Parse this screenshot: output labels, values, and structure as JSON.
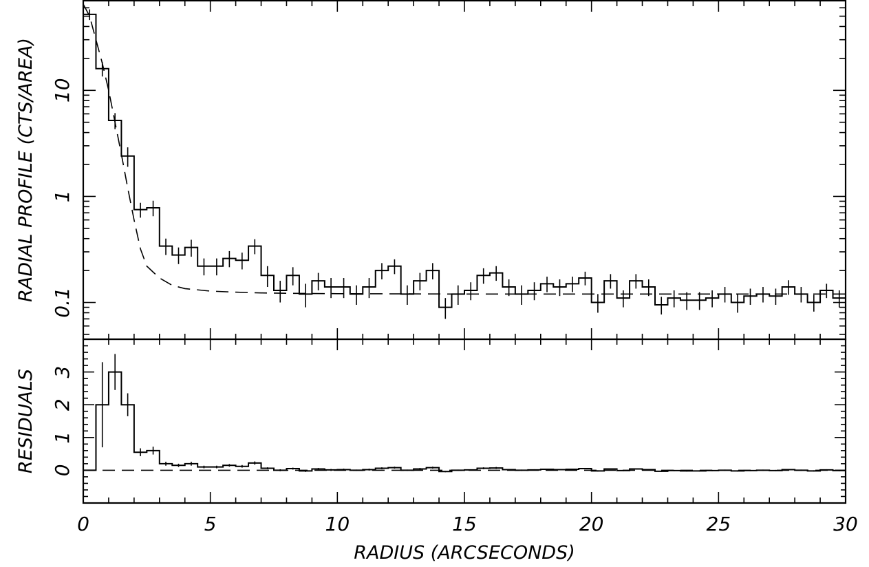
{
  "chart_data": [
    {
      "panel": "profile",
      "type": "line",
      "ylabel": "RADIAL PROFILE (CTS/AREA)",
      "xlabel": "",
      "x_scale": "linear",
      "y_scale": "log",
      "xlim": [
        0,
        30
      ],
      "ylim": [
        0.045,
        70
      ],
      "yticks_major": [
        0.1,
        1,
        10
      ],
      "ytick_labels": [
        "0.1",
        "1",
        "10"
      ],
      "grid": false,
      "series": [
        {
          "style": "step-with-errorbars",
          "x": [
            0.25,
            0.75,
            1.25,
            1.75,
            2.25,
            2.75,
            3.25,
            3.75,
            4.25,
            4.75,
            5.25,
            5.75,
            6.25,
            6.75,
            7.25,
            7.75,
            8.25,
            8.75,
            9.25,
            9.75,
            10.25,
            10.75,
            11.25,
            11.75,
            12.25,
            12.75,
            13.25,
            13.75,
            14.25,
            14.75,
            15.25,
            15.75,
            16.25,
            16.75,
            17.25,
            17.75,
            18.25,
            18.75,
            19.25,
            19.75,
            20.25,
            20.75,
            21.25,
            21.75,
            22.25,
            22.75,
            23.25,
            23.75,
            24.25,
            24.75,
            25.25,
            25.75,
            26.25,
            26.75,
            27.25,
            27.75,
            28.25,
            28.75,
            29.25,
            29.75
          ],
          "y": [
            52,
            16,
            5.2,
            2.4,
            0.75,
            0.78,
            0.34,
            0.28,
            0.33,
            0.22,
            0.22,
            0.26,
            0.25,
            0.34,
            0.18,
            0.13,
            0.18,
            0.12,
            0.16,
            0.14,
            0.14,
            0.12,
            0.14,
            0.2,
            0.22,
            0.12,
            0.16,
            0.2,
            0.09,
            0.12,
            0.13,
            0.18,
            0.19,
            0.14,
            0.12,
            0.13,
            0.15,
            0.14,
            0.15,
            0.17,
            0.1,
            0.16,
            0.11,
            0.16,
            0.14,
            0.095,
            0.11,
            0.105,
            0.105,
            0.11,
            0.12,
            0.1,
            0.115,
            0.12,
            0.115,
            0.14,
            0.12,
            0.1,
            0.13,
            0.11
          ],
          "err": [
            6,
            2.5,
            0.9,
            0.5,
            0.12,
            0.13,
            0.06,
            0.05,
            0.06,
            0.04,
            0.04,
            0.045,
            0.045,
            0.055,
            0.04,
            0.03,
            0.035,
            0.03,
            0.03,
            0.03,
            0.03,
            0.025,
            0.03,
            0.035,
            0.035,
            0.025,
            0.03,
            0.035,
            0.02,
            0.025,
            0.025,
            0.03,
            0.03,
            0.025,
            0.025,
            0.025,
            0.025,
            0.025,
            0.025,
            0.025,
            0.02,
            0.025,
            0.02,
            0.025,
            0.025,
            0.018,
            0.02,
            0.02,
            0.02,
            0.02,
            0.02,
            0.02,
            0.02,
            0.02,
            0.02,
            0.022,
            0.02,
            0.018,
            0.02,
            0.02
          ]
        },
        {
          "style": "dashed-model",
          "x": [
            0,
            0.25,
            0.5,
            0.75,
            1,
            1.25,
            1.5,
            1.75,
            2,
            2.25,
            2.5,
            3,
            3.5,
            4,
            5,
            6,
            7,
            8,
            10,
            15,
            20,
            25,
            30
          ],
          "y": [
            65,
            50,
            30,
            18,
            10,
            5,
            2.5,
            1.2,
            0.6,
            0.32,
            0.22,
            0.17,
            0.145,
            0.135,
            0.128,
            0.125,
            0.123,
            0.122,
            0.121,
            0.12,
            0.12,
            0.12,
            0.12
          ]
        }
      ]
    },
    {
      "panel": "residuals",
      "type": "line",
      "ylabel": "RESIDUALS",
      "xlabel": "RADIUS (ARCSECONDS)",
      "x_scale": "linear",
      "y_scale": "linear",
      "xlim": [
        0,
        30
      ],
      "ylim": [
        -1,
        4
      ],
      "yticks_major": [
        0,
        1,
        2,
        3
      ],
      "ytick_labels": [
        "0",
        "1",
        "2",
        "3"
      ],
      "xticks_major": [
        0,
        5,
        10,
        15,
        20,
        25,
        30
      ],
      "xtick_labels": [
        "0",
        "5",
        "10",
        "15",
        "20",
        "25",
        "30"
      ],
      "grid": false,
      "zero_line": 0,
      "series": [
        {
          "style": "step-with-errorbars",
          "x": [
            0.25,
            0.75,
            1.25,
            1.75,
            2.25,
            2.75,
            3.25,
            3.75,
            4.25,
            4.75,
            5.25,
            5.75,
            6.25,
            6.75,
            7.25,
            7.75,
            8.25,
            8.75,
            9.25,
            9.75,
            10.25,
            10.75,
            11.25,
            11.75,
            12.25,
            12.75,
            13.25,
            13.75,
            14.25,
            14.75,
            15.25,
            15.75,
            16.25,
            16.75,
            17.25,
            17.75,
            18.25,
            18.75,
            19.25,
            19.75,
            20.25,
            20.75,
            21.25,
            21.75,
            22.25,
            22.75,
            23.25,
            23.75,
            24.25,
            24.75,
            25.25,
            25.75,
            26.25,
            26.75,
            27.25,
            27.75,
            28.25,
            28.75,
            29.25,
            29.75
          ],
          "y": [
            0,
            2,
            3,
            2,
            0.55,
            0.6,
            0.2,
            0.15,
            0.2,
            0.1,
            0.1,
            0.15,
            0.12,
            0.22,
            0.06,
            0.0,
            0.05,
            -0.02,
            0.04,
            0.01,
            0.02,
            0.0,
            0.02,
            0.06,
            0.08,
            0.0,
            0.04,
            0.08,
            -0.04,
            0.0,
            0.01,
            0.06,
            0.07,
            0.02,
            0.0,
            0.01,
            0.03,
            0.02,
            0.03,
            0.05,
            -0.02,
            0.04,
            -0.01,
            0.04,
            0.02,
            -0.03,
            -0.01,
            -0.02,
            -0.02,
            -0.01,
            0.0,
            -0.02,
            -0.01,
            0.0,
            -0.01,
            0.02,
            0.0,
            -0.02,
            0.01,
            -0.01
          ],
          "err": [
            0,
            1.3,
            0.55,
            0.35,
            0.12,
            0.12,
            0.06,
            0.05,
            0.06,
            0.04,
            0.04,
            0.04,
            0.04,
            0.05,
            0.03,
            0.03,
            0.03,
            0.03,
            0.03,
            0.03,
            0.03,
            0.02,
            0.03,
            0.03,
            0.03,
            0.02,
            0.03,
            0.03,
            0.02,
            0.02,
            0.02,
            0.03,
            0.03,
            0.02,
            0.02,
            0.02,
            0.02,
            0.02,
            0.02,
            0.02,
            0.02,
            0.02,
            0.02,
            0.02,
            0.02,
            0.02,
            0.02,
            0.02,
            0.02,
            0.02,
            0.02,
            0.02,
            0.02,
            0.02,
            0.02,
            0.02,
            0.02,
            0.02,
            0.02,
            0.02
          ]
        }
      ]
    }
  ]
}
